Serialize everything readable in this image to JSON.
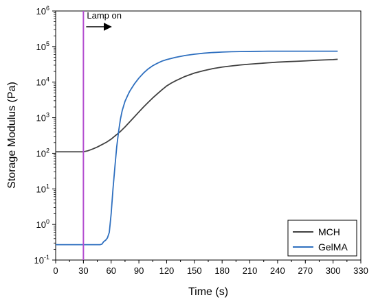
{
  "chart_data": {
    "type": "line",
    "title": "",
    "xlabel": "Time (s)",
    "ylabel": "Storage Modulus (Pa)",
    "xlim": [
      0,
      330
    ],
    "ylim_log10": [
      -1,
      6
    ],
    "y_scale": "log",
    "grid": false,
    "legend_position": "bottom-right",
    "x_ticks": [
      0,
      30,
      60,
      90,
      120,
      150,
      180,
      210,
      240,
      270,
      300,
      330
    ],
    "x_tick_labels": [
      "0",
      "30",
      "60",
      "90",
      "120",
      "150",
      "180",
      "210",
      "240",
      "270",
      "300",
      "330"
    ],
    "y_ticks": [
      {
        "exp": -1,
        "base": "10",
        "sup": "-1"
      },
      {
        "exp": 0,
        "base": "10",
        "sup": "0"
      },
      {
        "exp": 1,
        "base": "10",
        "sup": "1"
      },
      {
        "exp": 2,
        "base": "10",
        "sup": "2"
      },
      {
        "exp": 3,
        "base": "10",
        "sup": "3"
      },
      {
        "exp": 4,
        "base": "10",
        "sup": "4"
      },
      {
        "exp": 5,
        "base": "10",
        "sup": "5"
      },
      {
        "exp": 6,
        "base": "10",
        "sup": "6"
      }
    ],
    "annotations": [
      {
        "text": "Lamp on",
        "x": 30,
        "color": "#b44fd0"
      }
    ],
    "series": [
      {
        "name": "MCH",
        "color": "#404040",
        "x": [
          0,
          10,
          20,
          30,
          35,
          40,
          45,
          50,
          55,
          60,
          65,
          70,
          75,
          80,
          85,
          90,
          95,
          100,
          105,
          110,
          115,
          120,
          125,
          130,
          140,
          150,
          160,
          170,
          180,
          190,
          200,
          210,
          220,
          230,
          240,
          250,
          260,
          270,
          280,
          290,
          300,
          305
        ],
        "y": [
          110,
          110,
          110,
          110,
          118,
          132,
          150,
          175,
          205,
          250,
          320,
          410,
          550,
          760,
          1050,
          1450,
          2000,
          2700,
          3600,
          4700,
          6100,
          7800,
          9400,
          11000,
          14500,
          18000,
          21000,
          24000,
          26500,
          28500,
          30500,
          32000,
          33500,
          35000,
          36500,
          37500,
          38500,
          39500,
          41000,
          42000,
          43000,
          44000
        ]
      },
      {
        "name": "GelMA",
        "color": "#2e6fbf",
        "x": [
          0,
          10,
          20,
          30,
          40,
          48,
          50,
          52,
          54,
          56,
          58,
          60,
          62,
          64,
          66,
          68,
          70,
          72,
          75,
          78,
          80,
          85,
          90,
          95,
          100,
          105,
          110,
          115,
          120,
          130,
          140,
          150,
          160,
          170,
          180,
          190,
          200,
          210,
          220,
          230,
          240,
          260,
          280,
          300,
          305
        ],
        "y": [
          0.27,
          0.27,
          0.27,
          0.27,
          0.27,
          0.27,
          0.28,
          0.33,
          0.36,
          0.42,
          0.6,
          2.0,
          10,
          40,
          150,
          400,
          900,
          1600,
          2900,
          4300,
          5500,
          8800,
          13000,
          18000,
          23500,
          29000,
          34000,
          39000,
          43000,
          50000,
          56000,
          61000,
          65000,
          68000,
          70000,
          71500,
          72500,
          73000,
          73500,
          74000,
          74000,
          74000,
          74000,
          74000,
          74000
        ]
      }
    ]
  }
}
